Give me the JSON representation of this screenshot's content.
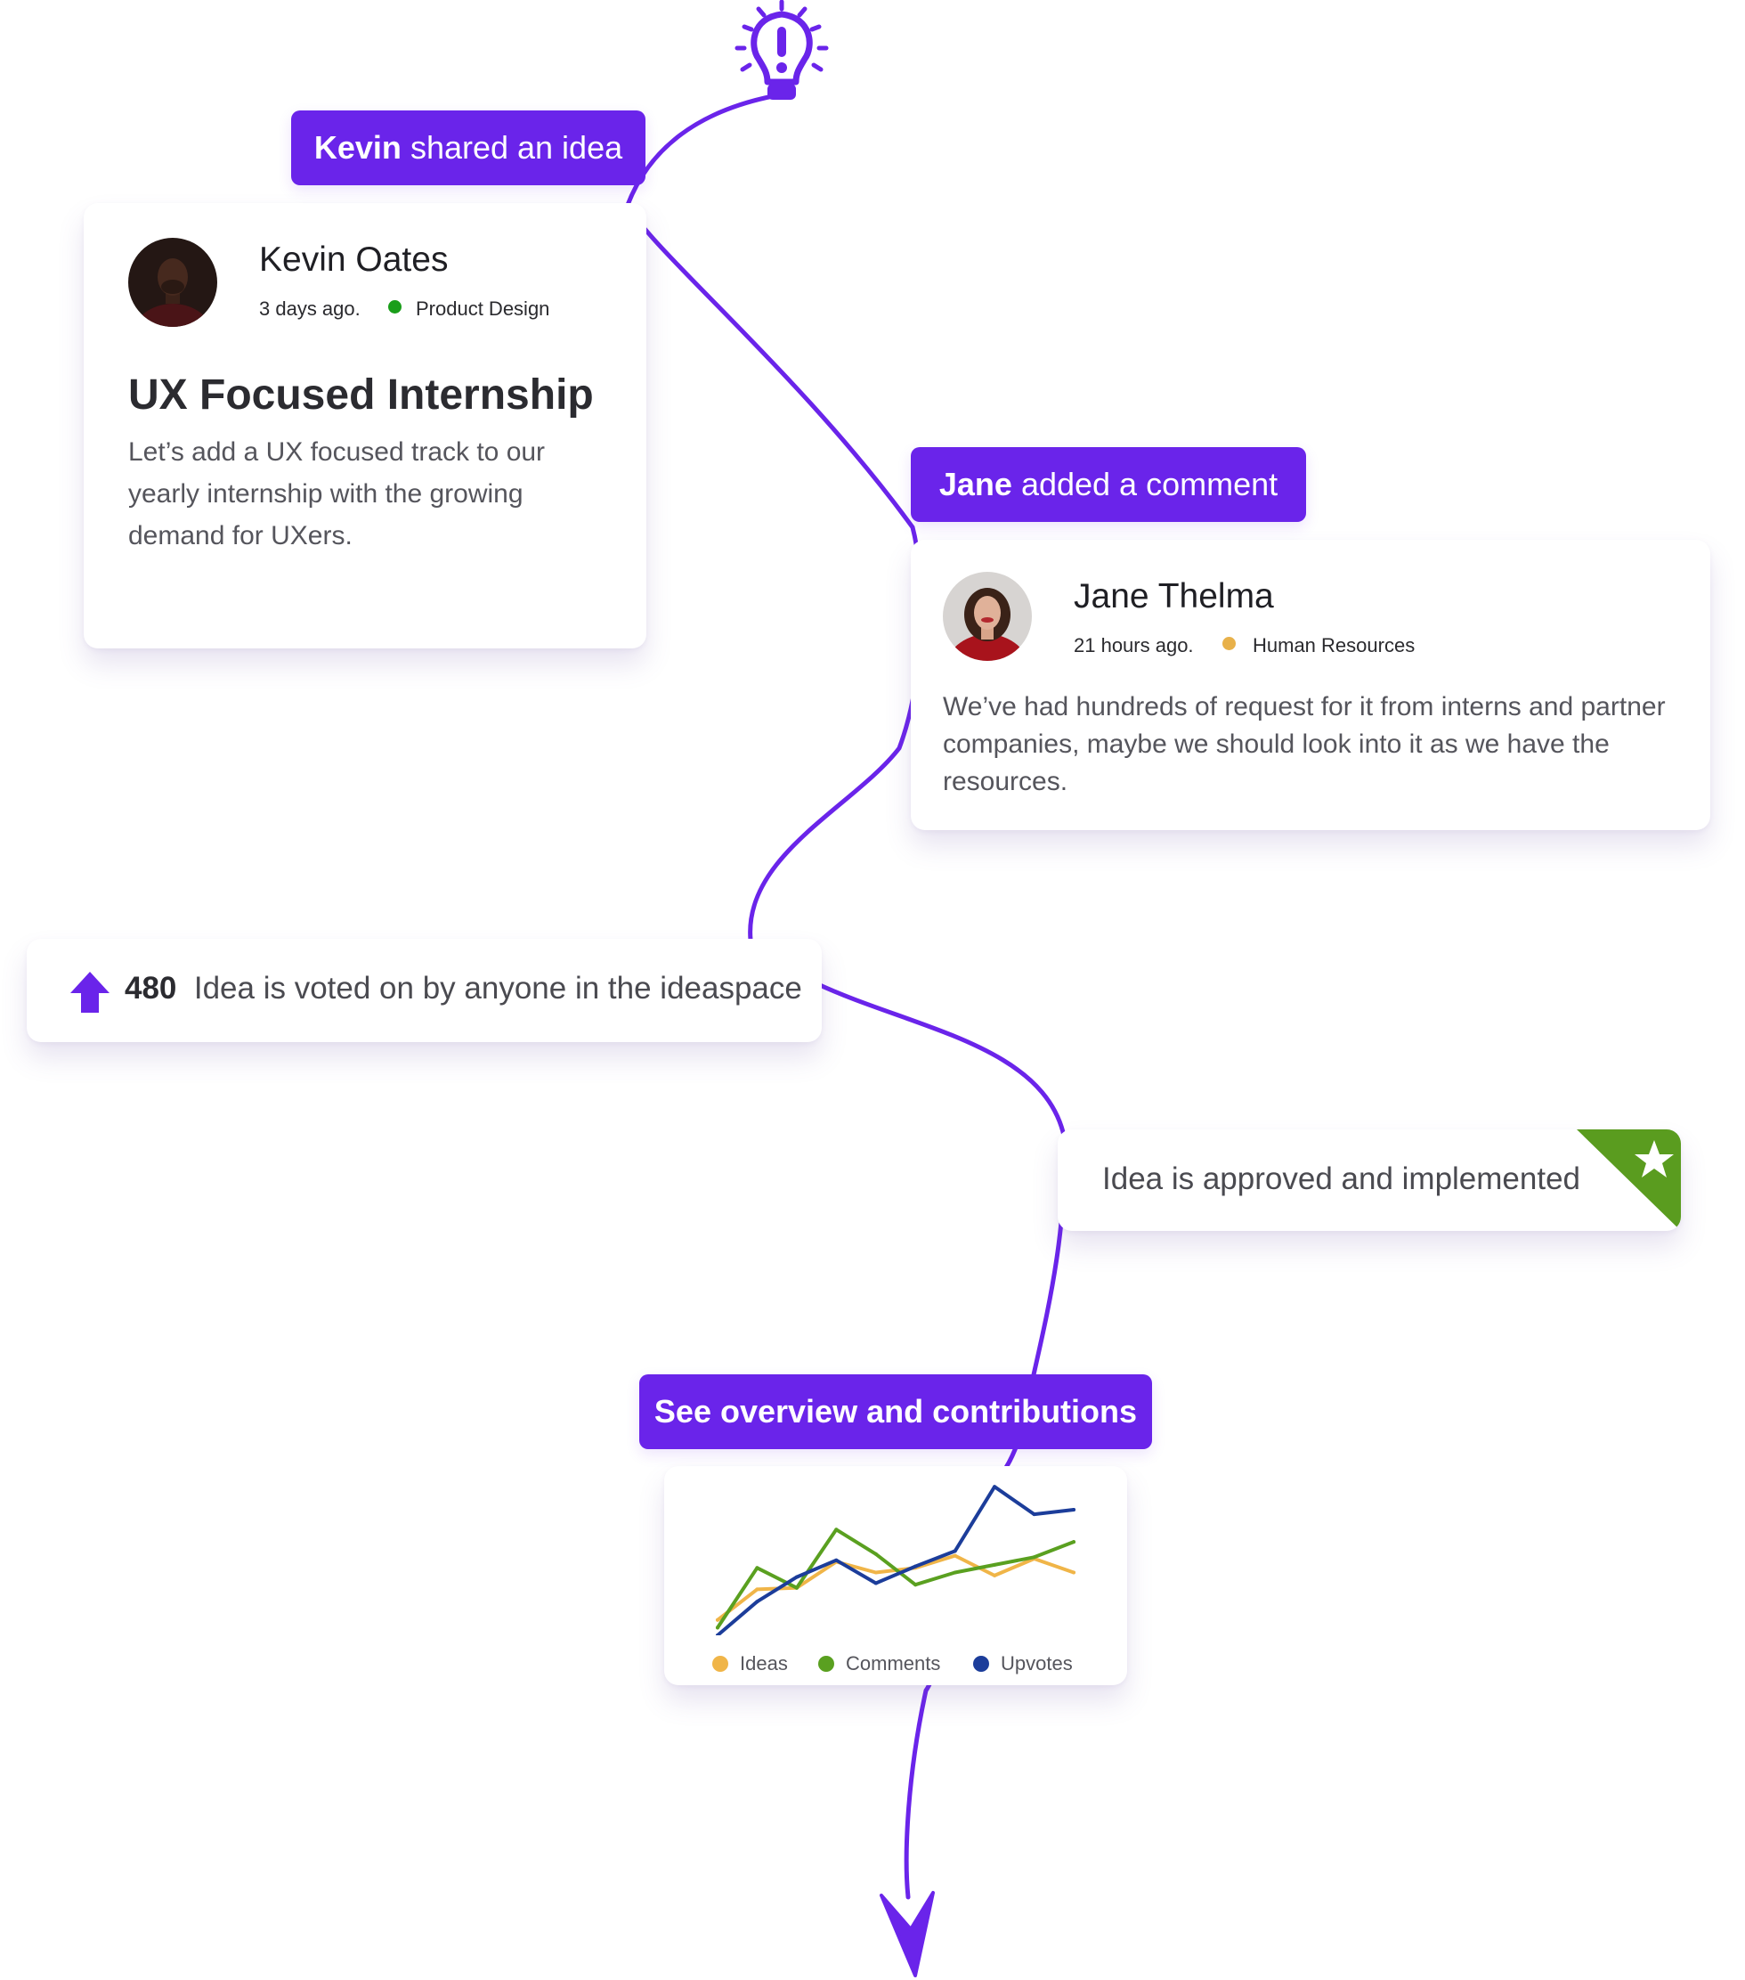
{
  "colors": {
    "accent": "#6a24ea",
    "approved_green": "#5a9c1f",
    "status_product_design": "#1a9e1a",
    "status_human_resources": "#e8b14a"
  },
  "idea_event": {
    "actor": "Kevin",
    "action": "shared an idea"
  },
  "idea_card": {
    "author_name": "Kevin Oates",
    "posted_ago": "3 days ago.",
    "department": "Product Design",
    "title": "UX Focused Internship",
    "body": "Let’s add a UX focused track to our yearly internship with the growing demand for UXers."
  },
  "comment_event": {
    "actor": "Jane",
    "action": "added a comment"
  },
  "comment_card": {
    "author_name": "Jane Thelma",
    "posted_ago": "21 hours ago.",
    "department": "Human Resources",
    "body": "We’ve had hundreds of request for it from interns and partner companies, maybe we should look into it as we have the resources."
  },
  "vote_card": {
    "count": "480",
    "text": "Idea is voted on by anyone in the ideaspace"
  },
  "approved_card": {
    "text": "Idea is approved and implemented"
  },
  "overview_button": {
    "label": "See overview and contributions"
  },
  "icons": {
    "start": "lightbulb-idea-icon",
    "upvote": "upvote-arrow-icon",
    "approved": "star-badge-icon",
    "end": "arrow-down-icon"
  },
  "chart_data": {
    "type": "line",
    "title": "",
    "xlabel": "",
    "ylabel": "",
    "grid": false,
    "legend_position": "bottom",
    "x": [
      1,
      2,
      3,
      4,
      5,
      6,
      7,
      8,
      9,
      10
    ],
    "ylim": [
      0,
      100
    ],
    "series": [
      {
        "name": "Ideas",
        "color": "#f0b548",
        "values": [
          10,
          30,
          31,
          48,
          41,
          44,
          52,
          39,
          50,
          41
        ]
      },
      {
        "name": "Comments",
        "color": "#5aa020",
        "values": [
          5,
          44,
          31,
          69,
          53,
          33,
          41,
          46,
          51,
          61
        ]
      },
      {
        "name": "Upvotes",
        "color": "#1c3d9a",
        "values": [
          0,
          22,
          38,
          49,
          34,
          45,
          55,
          97,
          79,
          82
        ]
      }
    ]
  }
}
